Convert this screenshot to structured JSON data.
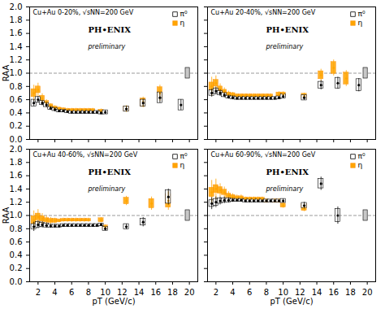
{
  "chart_data": [
    {
      "type": "scatter",
      "title": "Cu+Au 0-20%, √sNN=200 GeV",
      "ylabel": "RAA",
      "xlim": [
        1,
        21
      ],
      "xticks": [
        2,
        4,
        6,
        8,
        10,
        12,
        14,
        16,
        18,
        20
      ],
      "ylim": [
        0,
        2.0
      ],
      "yticks": [
        {
          "value": 0,
          "label": "0.0"
        },
        0.2,
        0.4,
        0.6,
        0.8,
        {
          "value": 1.0,
          "label": "1.0"
        },
        1.2,
        1.4,
        1.6,
        1.8,
        {
          "value": 2.0,
          "label": "2.0"
        }
      ],
      "tick_labels": "y",
      "legend": "upper right",
      "grid": false,
      "reference_line": 1.0,
      "global_uncertainty": {
        "x": 19.8,
        "y": 1.0,
        "error": 0.08
      },
      "annotations": [
        "PH•ENIX",
        "preliminary"
      ],
      "series": [
        {
          "name": "π⁰",
          "color": "#000000",
          "marker": "circle",
          "x": [
            1.5,
            2.0,
            2.5,
            3.0,
            3.5,
            4.0,
            4.5,
            5.0,
            5.5,
            6.0,
            6.5,
            7.0,
            7.5,
            8.0,
            8.5,
            9.0,
            9.5,
            10.0,
            12.5,
            14.5,
            16.5,
            19.0
          ],
          "values": [
            0.55,
            0.6,
            0.55,
            0.52,
            0.47,
            0.45,
            0.43,
            0.43,
            0.42,
            0.41,
            0.41,
            0.41,
            0.41,
            0.41,
            0.41,
            0.41,
            0.4,
            0.41,
            0.46,
            0.55,
            0.63,
            0.52
          ],
          "errors": [
            0.05,
            0.05,
            0.04,
            0.04,
            0.03,
            0.03,
            0.02,
            0.02,
            0.02,
            0.02,
            0.02,
            0.02,
            0.02,
            0.02,
            0.02,
            0.02,
            0.02,
            0.03,
            0.04,
            0.06,
            0.08,
            0.08
          ],
          "sys_errors": [
            0.05,
            0.04,
            0.03,
            0.03,
            0.02,
            0.02,
            0.02,
            0.02,
            0.02,
            0.02,
            0.02,
            0.02,
            0.02,
            0.02,
            0.02,
            0.02,
            0.02,
            0.03,
            0.04,
            0.05,
            0.08,
            0.08
          ]
        },
        {
          "name": "η",
          "color": "#FFA500",
          "marker": "circle",
          "x": [
            1.5,
            2.0,
            2.5,
            3.0,
            3.5,
            4.0,
            4.5,
            5.0,
            5.5,
            6.0,
            6.5,
            7.0,
            7.5,
            8.0,
            8.5,
            9.5,
            12.5,
            14.5,
            16.5
          ],
          "values": [
            0.7,
            0.75,
            0.62,
            0.55,
            0.5,
            0.47,
            0.46,
            0.45,
            0.44,
            0.44,
            0.44,
            0.44,
            0.44,
            0.44,
            0.44,
            0.42,
            0.46,
            0.56,
            0.7
          ],
          "errors": [
            0.12,
            0.1,
            0.07,
            0.05,
            0.04,
            0.04,
            0.03,
            0.03,
            0.03,
            0.03,
            0.03,
            0.03,
            0.03,
            0.03,
            0.03,
            0.04,
            0.05,
            0.08,
            0.12
          ],
          "sys_errors": [
            0.06,
            0.05,
            0.04,
            0.03,
            0.03,
            0.03,
            0.02,
            0.02,
            0.02,
            0.02,
            0.02,
            0.02,
            0.02,
            0.02,
            0.02,
            0.03,
            0.04,
            0.06,
            0.09
          ]
        }
      ]
    },
    {
      "type": "scatter",
      "title": "Cu+Au 20-40%, √sNN=200 GeV",
      "xlim": [
        1,
        21
      ],
      "xticks": [
        2,
        4,
        6,
        8,
        10,
        12,
        14,
        16,
        18,
        20
      ],
      "ylim": [
        0,
        2.0
      ],
      "yticks": [
        {
          "value": 0,
          "label": "0.0"
        },
        0.2,
        0.4,
        0.6,
        0.8,
        {
          "value": 1.0,
          "label": "1.0"
        },
        1.2,
        1.4,
        1.6,
        1.8,
        {
          "value": 2.0,
          "label": "2.0"
        }
      ],
      "tick_labels": false,
      "legend": "upper right",
      "grid": false,
      "reference_line": 1.0,
      "global_uncertainty": {
        "x": 19.8,
        "y": 1.0,
        "error": 0.08
      },
      "annotations": [
        "PH•ENIX",
        "preliminary"
      ],
      "series": [
        {
          "name": "π⁰",
          "color": "#000000",
          "marker": "circle",
          "x": [
            1.5,
            2.0,
            2.5,
            3.0,
            3.5,
            4.0,
            4.5,
            5.0,
            5.5,
            6.0,
            6.5,
            7.0,
            7.5,
            8.0,
            8.5,
            9.0,
            9.5,
            10.0,
            12.5,
            14.5,
            16.5,
            19.0
          ],
          "values": [
            0.7,
            0.73,
            0.7,
            0.67,
            0.64,
            0.63,
            0.62,
            0.62,
            0.62,
            0.62,
            0.62,
            0.62,
            0.62,
            0.62,
            0.62,
            0.62,
            0.63,
            0.65,
            0.63,
            0.82,
            0.85,
            0.82
          ],
          "errors": [
            0.06,
            0.06,
            0.05,
            0.04,
            0.03,
            0.03,
            0.02,
            0.02,
            0.02,
            0.02,
            0.02,
            0.02,
            0.02,
            0.02,
            0.02,
            0.02,
            0.02,
            0.03,
            0.04,
            0.07,
            0.09,
            0.1
          ],
          "sys_errors": [
            0.04,
            0.04,
            0.03,
            0.03,
            0.02,
            0.02,
            0.02,
            0.02,
            0.02,
            0.02,
            0.02,
            0.02,
            0.02,
            0.02,
            0.02,
            0.02,
            0.02,
            0.03,
            0.04,
            0.05,
            0.08,
            0.09
          ]
        },
        {
          "name": "η",
          "color": "#FFA500",
          "marker": "circle",
          "x": [
            1.5,
            2.0,
            2.5,
            3.0,
            3.5,
            4.0,
            4.5,
            5.0,
            5.5,
            6.0,
            6.5,
            7.0,
            7.5,
            8.0,
            8.5,
            9.5,
            10.0,
            12.5,
            14.5,
            16.0,
            17.5
          ],
          "values": [
            0.8,
            0.85,
            0.76,
            0.72,
            0.68,
            0.67,
            0.66,
            0.66,
            0.66,
            0.66,
            0.66,
            0.66,
            0.66,
            0.66,
            0.66,
            0.68,
            0.68,
            0.65,
            0.97,
            1.08,
            0.92
          ],
          "errors": [
            0.14,
            0.11,
            0.08,
            0.06,
            0.05,
            0.04,
            0.03,
            0.03,
            0.03,
            0.03,
            0.03,
            0.03,
            0.03,
            0.03,
            0.03,
            0.04,
            0.04,
            0.05,
            0.09,
            0.12,
            0.12
          ],
          "sys_errors": [
            0.06,
            0.05,
            0.04,
            0.03,
            0.03,
            0.03,
            0.02,
            0.02,
            0.02,
            0.02,
            0.02,
            0.02,
            0.02,
            0.02,
            0.02,
            0.03,
            0.03,
            0.04,
            0.06,
            0.09,
            0.09
          ]
        }
      ]
    },
    {
      "type": "scatter",
      "title": "Cu+Au 40-60%, √sNN=200 GeV",
      "xlabel": "pT (GeV/c)",
      "ylabel": "RAA",
      "xlim": [
        1,
        21
      ],
      "xticks": [
        2,
        4,
        6,
        8,
        10,
        12,
        14,
        16,
        18,
        20
      ],
      "ylim": [
        0,
        2.0
      ],
      "yticks": [
        {
          "value": 0,
          "label": "0.0"
        },
        0.2,
        0.4,
        0.6,
        0.8,
        {
          "value": 1.0,
          "label": "1.0"
        },
        1.2,
        1.4,
        1.6,
        1.8,
        {
          "value": 2.0,
          "label": "2.0"
        }
      ],
      "legend": "upper right",
      "grid": false,
      "reference_line": 1.0,
      "global_uncertainty": {
        "x": 19.8,
        "y": 1.0,
        "error": 0.08
      },
      "annotations": [
        "PH•ENIX",
        "preliminary"
      ],
      "series": [
        {
          "name": "π⁰",
          "color": "#000000",
          "marker": "circle",
          "x": [
            1.5,
            2.0,
            2.5,
            3.0,
            3.5,
            4.0,
            4.5,
            5.0,
            5.5,
            6.0,
            6.5,
            7.0,
            7.5,
            8.0,
            8.5,
            9.0,
            9.5,
            10.0,
            12.5,
            14.5,
            17.5
          ],
          "values": [
            0.83,
            0.86,
            0.86,
            0.85,
            0.84,
            0.84,
            0.84,
            0.85,
            0.85,
            0.85,
            0.85,
            0.85,
            0.85,
            0.85,
            0.85,
            0.85,
            0.86,
            0.8,
            0.83,
            0.9,
            1.28
          ],
          "errors": [
            0.07,
            0.06,
            0.05,
            0.04,
            0.03,
            0.03,
            0.02,
            0.02,
            0.02,
            0.02,
            0.02,
            0.02,
            0.02,
            0.02,
            0.02,
            0.02,
            0.02,
            0.03,
            0.04,
            0.07,
            0.12
          ],
          "sys_errors": [
            0.04,
            0.04,
            0.03,
            0.03,
            0.02,
            0.02,
            0.02,
            0.02,
            0.02,
            0.02,
            0.02,
            0.02,
            0.02,
            0.02,
            0.02,
            0.02,
            0.02,
            0.03,
            0.04,
            0.05,
            0.1
          ]
        },
        {
          "name": "η",
          "color": "#FFA500",
          "marker": "circle",
          "x": [
            1.5,
            2.0,
            2.5,
            3.0,
            3.5,
            4.0,
            4.5,
            5.0,
            5.5,
            6.0,
            6.5,
            7.0,
            7.5,
            8.0,
            9.5,
            10.0,
            12.5,
            15.5,
            17.5
          ],
          "values": [
            0.93,
            0.98,
            0.95,
            0.93,
            0.92,
            0.92,
            0.92,
            0.93,
            0.93,
            0.93,
            0.93,
            0.93,
            0.93,
            0.93,
            0.93,
            0.82,
            1.22,
            1.18,
            1.22
          ],
          "errors": [
            0.14,
            0.11,
            0.08,
            0.06,
            0.05,
            0.04,
            0.03,
            0.03,
            0.03,
            0.03,
            0.03,
            0.03,
            0.03,
            0.03,
            0.04,
            0.04,
            0.07,
            0.1,
            0.14
          ],
          "sys_errors": [
            0.06,
            0.05,
            0.04,
            0.03,
            0.03,
            0.03,
            0.02,
            0.02,
            0.02,
            0.02,
            0.02,
            0.02,
            0.02,
            0.02,
            0.03,
            0.03,
            0.05,
            0.07,
            0.1
          ]
        }
      ]
    },
    {
      "type": "scatter",
      "title": "Cu+Au 60-90%, √sNN=200 GeV",
      "xlabel": "pT (GeV/c)",
      "xlim": [
        1,
        21
      ],
      "xticks": [
        2,
        4,
        6,
        8,
        10,
        12,
        14,
        16,
        18,
        20
      ],
      "ylim": [
        0,
        2.0
      ],
      "yticks": [
        {
          "value": 0,
          "label": "0.0"
        },
        0.2,
        0.4,
        0.6,
        0.8,
        {
          "value": 1.0,
          "label": "1.0"
        },
        1.2,
        1.4,
        1.6,
        1.8,
        {
          "value": 2.0,
          "label": "2.0"
        }
      ],
      "tick_labels": "x",
      "legend": "upper right",
      "grid": false,
      "reference_line": 1.0,
      "global_uncertainty": {
        "x": 19.8,
        "y": 1.0,
        "error": 0.08
      },
      "annotations": [
        "PH•ENIX",
        "preliminary"
      ],
      "series": [
        {
          "name": "π⁰",
          "color": "#000000",
          "marker": "circle",
          "x": [
            1.5,
            2.0,
            2.5,
            3.0,
            3.5,
            4.0,
            4.5,
            5.0,
            5.5,
            6.0,
            6.5,
            7.0,
            7.5,
            8.0,
            8.5,
            9.0,
            9.5,
            10.0,
            12.5,
            14.5,
            16.5
          ],
          "values": [
            1.18,
            1.2,
            1.22,
            1.23,
            1.23,
            1.23,
            1.23,
            1.23,
            1.22,
            1.22,
            1.22,
            1.22,
            1.22,
            1.22,
            1.22,
            1.22,
            1.22,
            1.22,
            1.15,
            1.48,
            1.0
          ],
          "errors": [
            0.09,
            0.08,
            0.06,
            0.05,
            0.04,
            0.03,
            0.02,
            0.02,
            0.02,
            0.02,
            0.02,
            0.02,
            0.02,
            0.02,
            0.02,
            0.02,
            0.02,
            0.03,
            0.05,
            0.1,
            0.13
          ],
          "sys_errors": [
            0.05,
            0.05,
            0.04,
            0.03,
            0.03,
            0.02,
            0.02,
            0.02,
            0.02,
            0.02,
            0.02,
            0.02,
            0.02,
            0.02,
            0.02,
            0.02,
            0.02,
            0.03,
            0.04,
            0.07,
            0.1
          ]
        },
        {
          "name": "η",
          "color": "#FFA500",
          "marker": "circle",
          "x": [
            1.5,
            2.0,
            2.5,
            3.0,
            3.5,
            4.0,
            4.5,
            5.0,
            5.5,
            6.0,
            6.5,
            7.0,
            7.5,
            8.0,
            9.0,
            9.5,
            10.0,
            12.5
          ],
          "values": [
            1.35,
            1.4,
            1.38,
            1.35,
            1.3,
            1.28,
            1.27,
            1.27,
            1.25,
            1.25,
            1.25,
            1.25,
            1.25,
            1.22,
            1.22,
            1.22,
            1.15,
            1.12
          ],
          "errors": [
            0.18,
            0.15,
            0.1,
            0.08,
            0.06,
            0.05,
            0.04,
            0.04,
            0.03,
            0.03,
            0.03,
            0.03,
            0.03,
            0.03,
            0.03,
            0.03,
            0.04,
            0.06
          ],
          "sys_errors": [
            0.07,
            0.06,
            0.05,
            0.04,
            0.03,
            0.03,
            0.02,
            0.02,
            0.02,
            0.02,
            0.02,
            0.02,
            0.02,
            0.02,
            0.02,
            0.02,
            0.03,
            0.05
          ]
        }
      ]
    }
  ]
}
